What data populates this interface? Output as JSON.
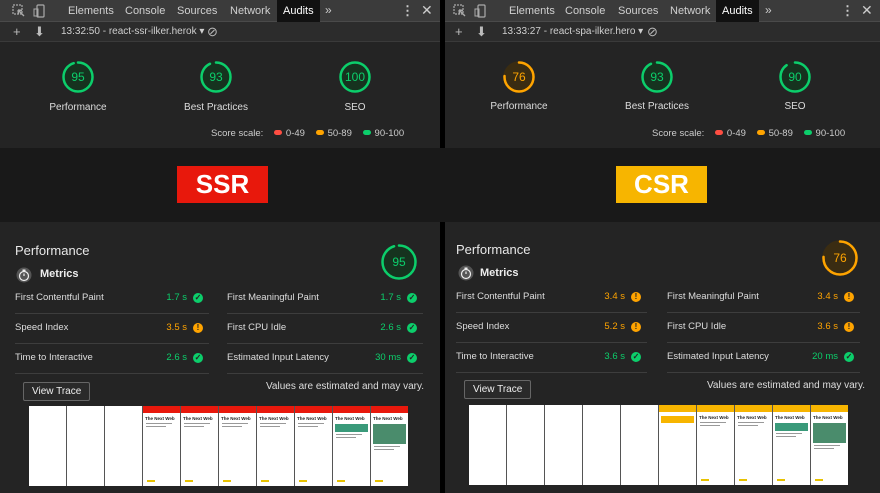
{
  "colors": {
    "pass": "#0cce6b",
    "average": "#ffa400",
    "fail": "#ff4e42",
    "ssr_banner": "#e8180c",
    "csr_banner": "#f7b500"
  },
  "devtools": {
    "tabs": [
      "Elements",
      "Console",
      "Sources",
      "Network",
      "Audits"
    ],
    "active_tab": "Audits",
    "more": "»",
    "kebab": "⋮",
    "close": "✕",
    "toolbar_add": "+",
    "toolbar_download": "⬇",
    "toolbar_clear": "⊘"
  },
  "left": {
    "toolbar_text": "13:32:50 - react-ssr-ilker.herok ▾",
    "summary": [
      {
        "label": "Performance",
        "score": "95",
        "score_value": 95,
        "status": "pass"
      },
      {
        "label": "Best Practices",
        "score": "93",
        "score_value": 93,
        "status": "pass"
      },
      {
        "label": "SEO",
        "score": "100",
        "score_value": 100,
        "status": "pass"
      }
    ],
    "banner": "SSR",
    "perf_title": "Performance",
    "perf_score": "95",
    "perf_score_value": 95,
    "perf_status": "pass",
    "metrics_header": "Metrics",
    "metrics": [
      {
        "name": "First Contentful Paint",
        "value": "1.7 s",
        "status": "pass"
      },
      {
        "name": "First Meaningful Paint",
        "value": "1.7 s",
        "status": "pass"
      },
      {
        "name": "Speed Index",
        "value": "3.5 s",
        "status": "average"
      },
      {
        "name": "First CPU Idle",
        "value": "2.6 s",
        "status": "pass"
      },
      {
        "name": "Time to Interactive",
        "value": "2.6 s",
        "status": "pass"
      },
      {
        "name": "Estimated Input Latency",
        "value": "30 ms",
        "status": "pass"
      }
    ]
  },
  "right": {
    "toolbar_text": "13:33:27 - react-spa-ilker.hero ▾",
    "summary": [
      {
        "label": "Performance",
        "score": "76",
        "score_value": 76,
        "status": "average"
      },
      {
        "label": "Best Practices",
        "score": "93",
        "score_value": 93,
        "status": "pass"
      },
      {
        "label": "SEO",
        "score": "90",
        "score_value": 90,
        "status": "pass"
      }
    ],
    "banner": "CSR",
    "perf_title": "Performance",
    "perf_score": "76",
    "perf_score_value": 76,
    "perf_status": "average",
    "metrics_header": "Metrics",
    "metrics": [
      {
        "name": "First Contentful Paint",
        "value": "3.4 s",
        "status": "average"
      },
      {
        "name": "First Meaningful Paint",
        "value": "3.4 s",
        "status": "average"
      },
      {
        "name": "Speed Index",
        "value": "5.2 s",
        "status": "average"
      },
      {
        "name": "First CPU Idle",
        "value": "3.6 s",
        "status": "average"
      },
      {
        "name": "Time to Interactive",
        "value": "3.6 s",
        "status": "pass"
      },
      {
        "name": "Estimated Input Latency",
        "value": "20 ms",
        "status": "pass"
      }
    ]
  },
  "score_scale": {
    "label": "Score scale:",
    "ranges": [
      "0-49",
      "50-89",
      "90-100"
    ]
  },
  "view_trace": "View Trace",
  "values_note": "Values are estimated and may vary.",
  "filmstrip_heading": "The Next Web"
}
